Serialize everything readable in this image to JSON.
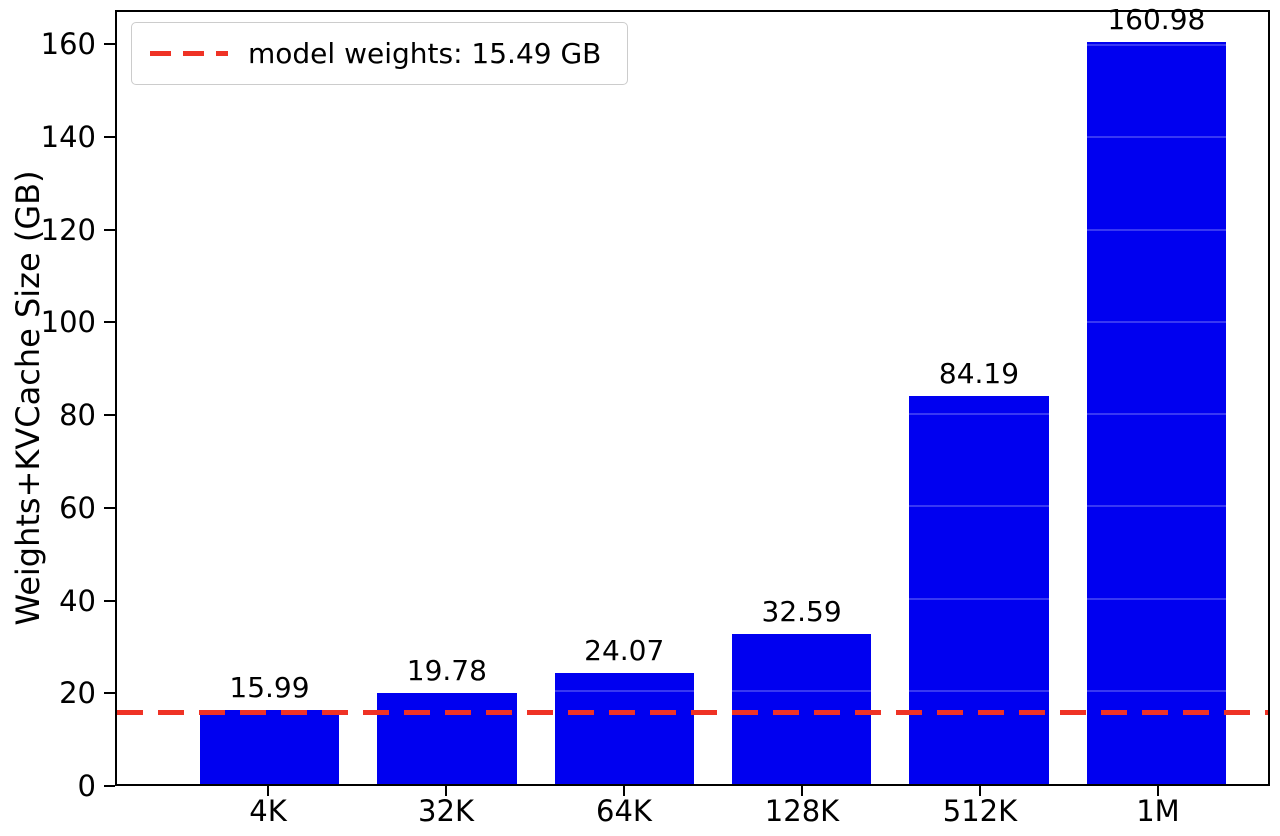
{
  "chart_data": {
    "type": "bar",
    "categories": [
      "4K",
      "32K",
      "64K",
      "128K",
      "512K",
      "1M"
    ],
    "values": [
      15.99,
      19.78,
      24.07,
      32.59,
      84.19,
      160.98
    ],
    "bar_labels": [
      "15.99",
      "19.78",
      "24.07",
      "32.59",
      "84.19",
      "160.98"
    ],
    "title": "",
    "xlabel": "",
    "ylabel": "Weights+KVCache Size (GB)",
    "ylim": [
      0,
      167.4
    ],
    "yticks": [
      0,
      20,
      40,
      60,
      80,
      100,
      120,
      140,
      160
    ],
    "bar_color": "#0000f0",
    "reference_line": {
      "value": 15.49,
      "label": "model weights: 15.49 GB",
      "color": "#ef3225",
      "style": "dashed"
    },
    "legend_position": "upper left",
    "grid": false
  }
}
